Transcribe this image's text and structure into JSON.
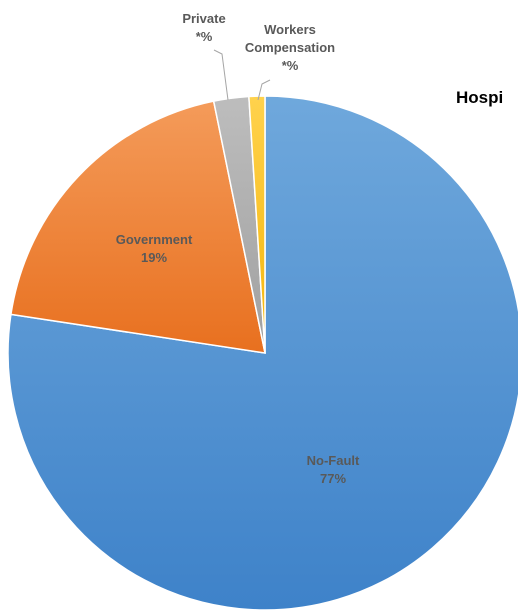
{
  "chart_data": {
    "type": "pie",
    "title": "Hospi",
    "slices": [
      {
        "label": "No-Fault",
        "value_text": "77%",
        "value": 77.4,
        "color_light": "#6fa8dc",
        "color_dark": "#3e82c9",
        "label_color": "#595959"
      },
      {
        "label": "Government",
        "value_text": "19%",
        "value": 19.4,
        "color_light": "#f49b5a",
        "color_dark": "#e8701f",
        "label_color": "#595959"
      },
      {
        "label": "Private",
        "value_text": "*%",
        "value": 2.2,
        "color_light": "#bdbdbd",
        "color_dark": "#a0a0a0",
        "label_color": "#595959"
      },
      {
        "label": "Workers Compensation",
        "value_text": "*%",
        "value": 1.0,
        "color_light": "#ffd24d",
        "color_dark": "#f5b50a",
        "label_color": "#595959"
      }
    ],
    "start_angle": "12 o'clock",
    "direction": "clockwise",
    "legend": "none"
  }
}
